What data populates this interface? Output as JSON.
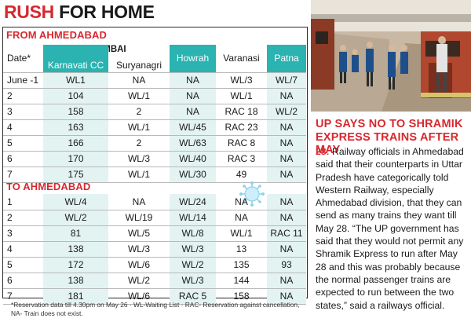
{
  "headline": {
    "part1": "RUSH",
    "part2": " FOR HOME"
  },
  "table": {
    "section1_title": "FROM AHMEDABAD",
    "section2_title": "TO AHMEDABAD",
    "group_header": "MUMBAI",
    "columns": [
      "Date*",
      "Karnavati CC",
      "Suryanagri",
      "Howrah",
      "Varanasi",
      "Patna"
    ],
    "from_rows": [
      [
        "June -1",
        "WL1",
        "NA",
        "NA",
        "WL/3",
        "WL/7"
      ],
      [
        "2",
        "104",
        "WL/1",
        "NA",
        "WL/1",
        "NA"
      ],
      [
        "3",
        "158",
        "2",
        "NA",
        "RAC 18",
        "WL/2"
      ],
      [
        "4",
        "163",
        "WL/1",
        "WL/45",
        "RAC 23",
        "NA"
      ],
      [
        "5",
        "166",
        "2",
        "WL/63",
        "RAC 8",
        "NA"
      ],
      [
        "6",
        "170",
        "WL/3",
        "WL/40",
        "RAC 3",
        "NA"
      ],
      [
        "7",
        "175",
        "WL/1",
        "WL/30",
        "49",
        "NA"
      ]
    ],
    "to_rows": [
      [
        "1",
        "WL/4",
        "NA",
        "WL/24",
        "NA",
        "NA"
      ],
      [
        "2",
        "WL/2",
        "WL/19",
        "WL/14",
        "NA",
        "NA"
      ],
      [
        "3",
        "81",
        "WL/5",
        "WL/8",
        "WL/1",
        "RAC 11"
      ],
      [
        "4",
        "138",
        "WL/3",
        "WL/3",
        "13",
        "NA"
      ],
      [
        "5",
        "172",
        "WL/6",
        "WL/2",
        "135",
        "93"
      ],
      [
        "6",
        "138",
        "WL/2",
        "WL/3",
        "144",
        "NA"
      ],
      [
        "7",
        "181",
        "WL/6",
        "RAC 5",
        "158",
        "NA"
      ]
    ],
    "footnote": "*Reservation data till 4.30pm on May 26 · WL-Waiting List · RAC- Reservation against cancellation, NA- Train does not exist."
  },
  "story": {
    "headline": "UP SAYS NO TO SHRAMIK EXPRESS TRAINS AFTER MAY",
    "dateline": "28:",
    "body": " Railway officials in Ahmedabad said that their counterparts in Uttar Pradesh have categorically told Western Railway, especially Ahmedabad division, that they can send as many trains they want till May 28. “The UP government has said that they would not permit any Shramik Express to run after May 28 and this was probably because the normal passenger trains are expected to run between the two states,” said a railways official."
  },
  "colors": {
    "accent_red": "#d7282f",
    "teal": "#2ab3b0",
    "teal_light": "#e3f3f2"
  },
  "icons": [
    "virus-icon",
    "train-photo"
  ]
}
